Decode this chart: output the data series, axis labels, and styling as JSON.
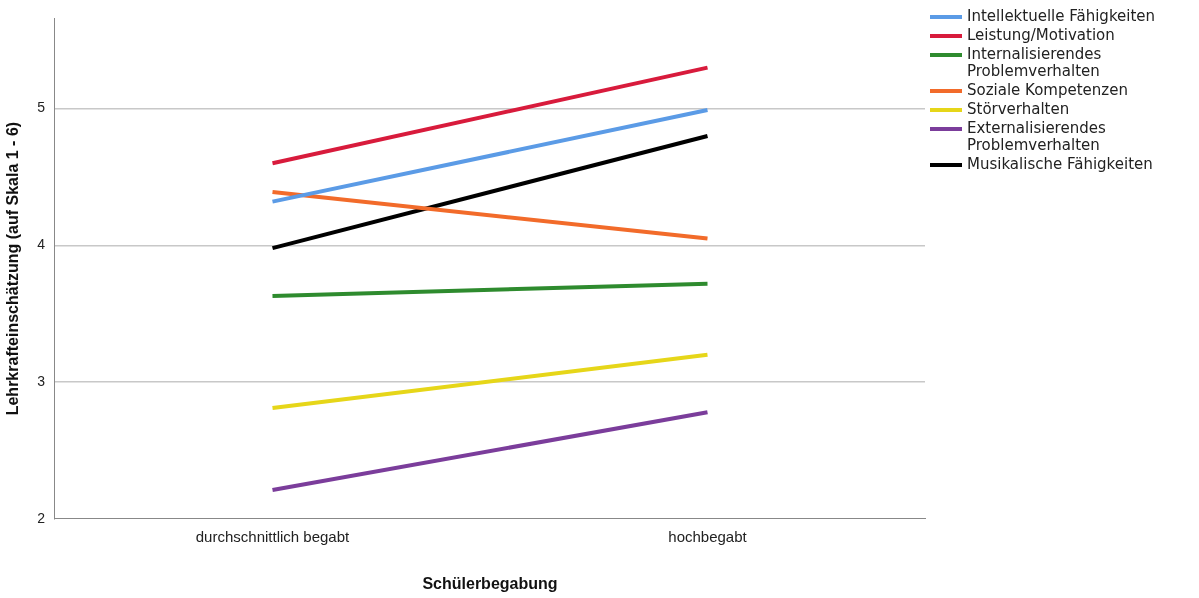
{
  "chart_data": {
    "type": "line",
    "xlabel": "Schülerbegabung",
    "ylabel": "Lehrkrafteinschätzung (auf Skala 1 - 6)",
    "categories": [
      "durchschnittlich begabt",
      "hochbegabt"
    ],
    "series": [
      {
        "name": "Intellektuelle Fähigkeiten",
        "color": "#5b9be6",
        "values": [
          4.32,
          4.99
        ]
      },
      {
        "name": "Leistung/Motivation",
        "color": "#d81b3c",
        "values": [
          4.6,
          5.3
        ]
      },
      {
        "name": "Internalisierendes Problemverhalten",
        "color": "#2e8b2e",
        "values": [
          3.63,
          3.72
        ]
      },
      {
        "name": "Soziale Kompetenzen",
        "color": "#f26b2a",
        "values": [
          4.39,
          4.05
        ]
      },
      {
        "name": "Störverhalten",
        "color": "#e6d619",
        "values": [
          2.81,
          3.2
        ]
      },
      {
        "name": "Externalisierendes Problemverhalten",
        "color": "#7b3d9b",
        "values": [
          2.21,
          2.78
        ]
      },
      {
        "name": "Musikalische Fähigkeiten",
        "color": "#000000",
        "values": [
          3.98,
          4.8
        ]
      }
    ],
    "ylim": [
      2,
      5.66
    ],
    "yticks": [
      2,
      3,
      4,
      5
    ],
    "grid": "y",
    "legend": "top right",
    "marker": "none",
    "line_style": "solid"
  }
}
